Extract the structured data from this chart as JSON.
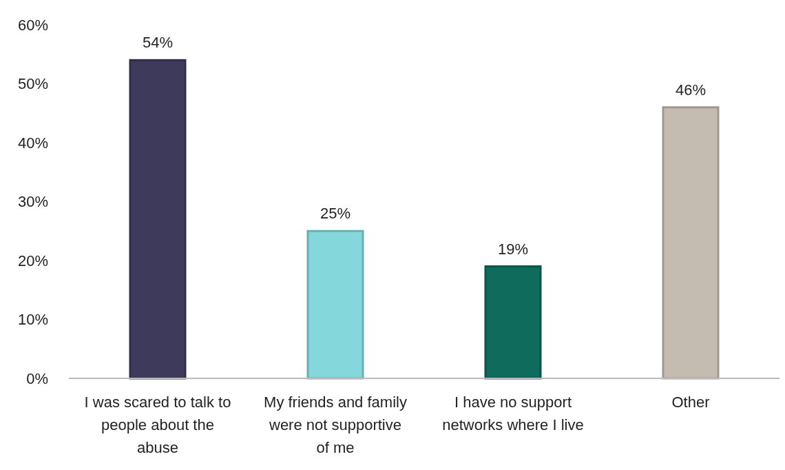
{
  "chart_data": {
    "type": "bar",
    "categories": [
      "I was scared to talk to people about the abuse",
      "My friends and family were not supportive of me",
      "I have no support networks where I live",
      "Other"
    ],
    "values": [
      54,
      25,
      19,
      46
    ],
    "colors": [
      "#3d3a5c",
      "#84d8dc",
      "#0f6b5b",
      "#c4bcb0"
    ],
    "ylim": [
      0,
      60
    ],
    "yticks": [
      {
        "value": 0,
        "label": "0%"
      },
      {
        "value": 10,
        "label": "10%"
      },
      {
        "value": 20,
        "label": "20%"
      },
      {
        "value": 30,
        "label": "30%"
      },
      {
        "value": 40,
        "label": "40%"
      },
      {
        "value": 50,
        "label": "50%"
      },
      {
        "value": 60,
        "label": "60%"
      }
    ],
    "value_labels": [
      "54%",
      "25%",
      "19%",
      "46%"
    ],
    "grid": false
  }
}
